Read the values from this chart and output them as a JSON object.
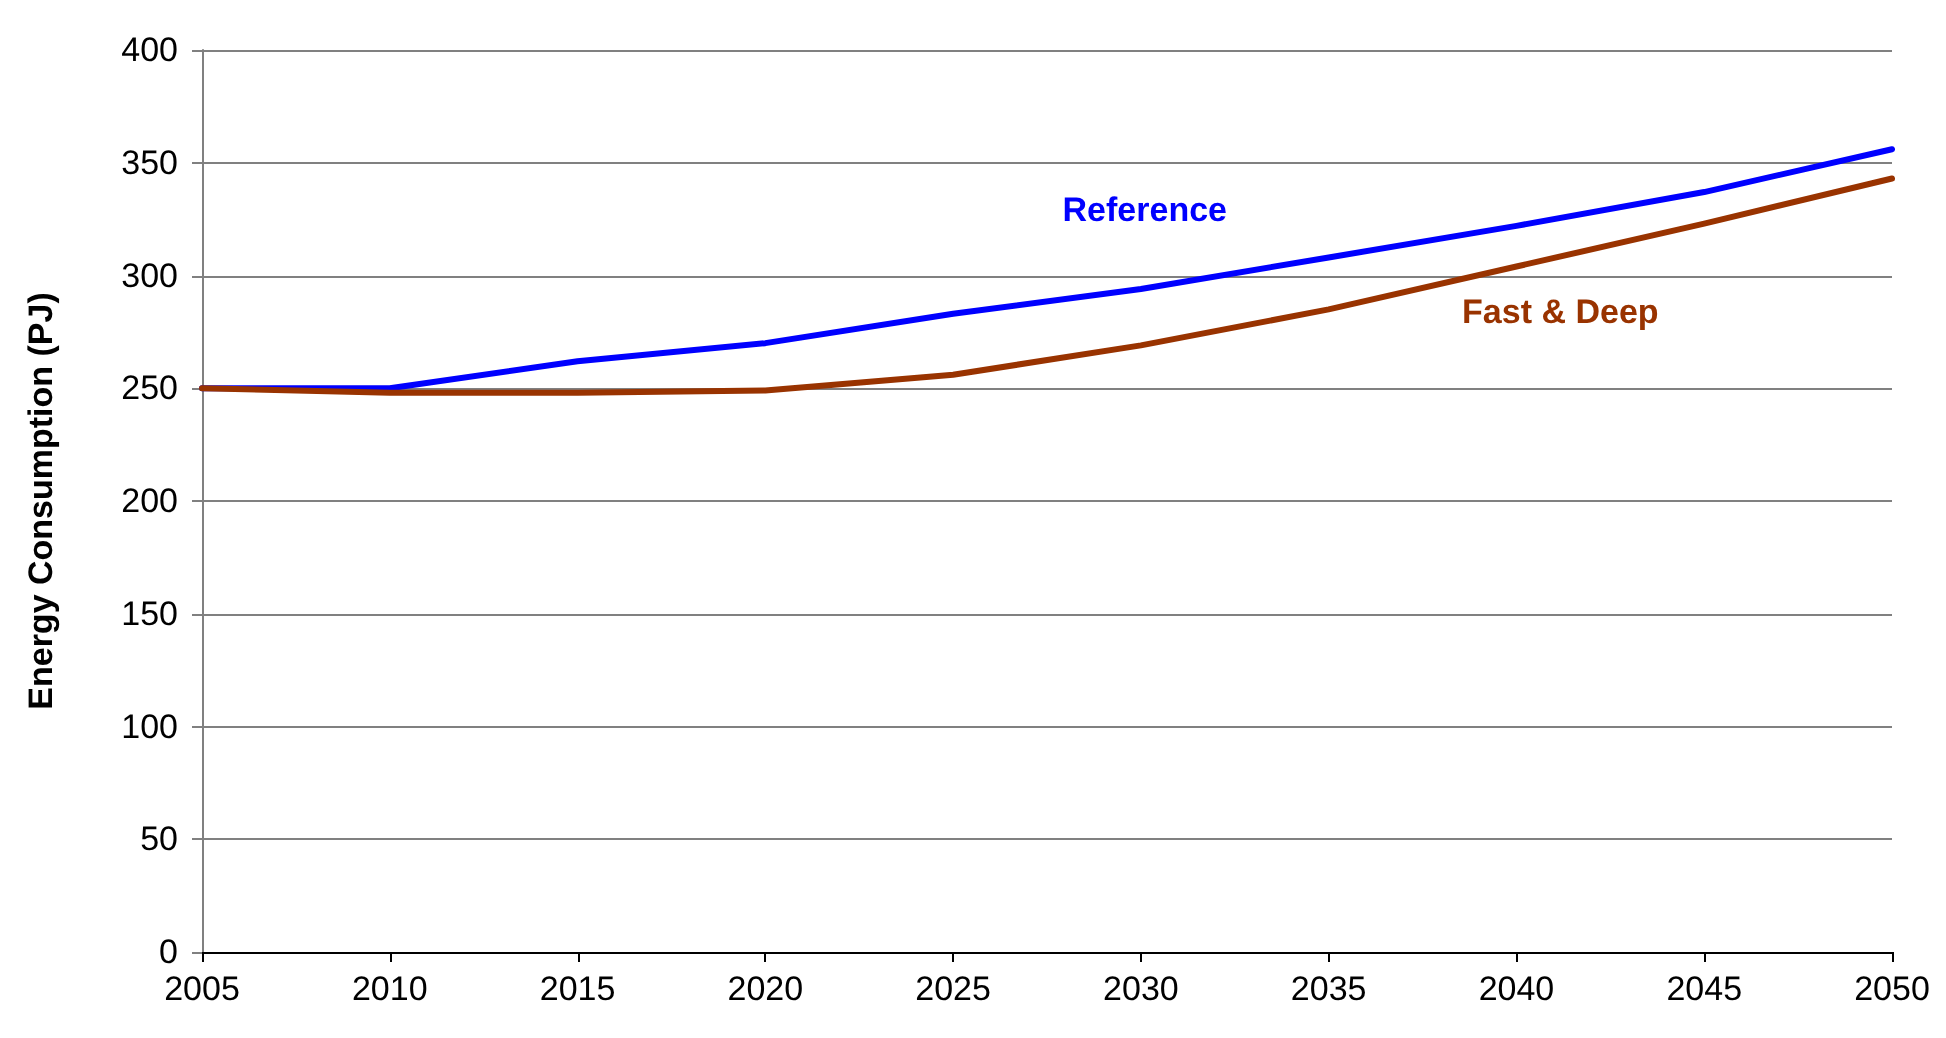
{
  "chart_data": {
    "type": "line",
    "ylabel": "Energy Consumption (PJ)",
    "x": [
      2005,
      2010,
      2015,
      2020,
      2025,
      2030,
      2035,
      2040,
      2045,
      2050
    ],
    "series": [
      {
        "name": "Reference",
        "color": "#0000ff",
        "values": [
          250,
          250,
          262,
          270,
          283,
          294,
          308,
          322,
          337,
          356
        ]
      },
      {
        "name": "Fast & Deep",
        "color": "#993300",
        "values": [
          250,
          248,
          248,
          249,
          256,
          269,
          285,
          304,
          323,
          343
        ]
      }
    ],
    "xlim": [
      2005,
      2050
    ],
    "xticks": [
      2005,
      2010,
      2015,
      2020,
      2025,
      2030,
      2035,
      2040,
      2045,
      2050
    ],
    "ylim": [
      0,
      400
    ],
    "yticks": [
      0,
      50,
      100,
      150,
      200,
      250,
      300,
      350,
      400
    ],
    "grid": "y",
    "legend": false,
    "marker": "none",
    "line_style": "solid"
  }
}
